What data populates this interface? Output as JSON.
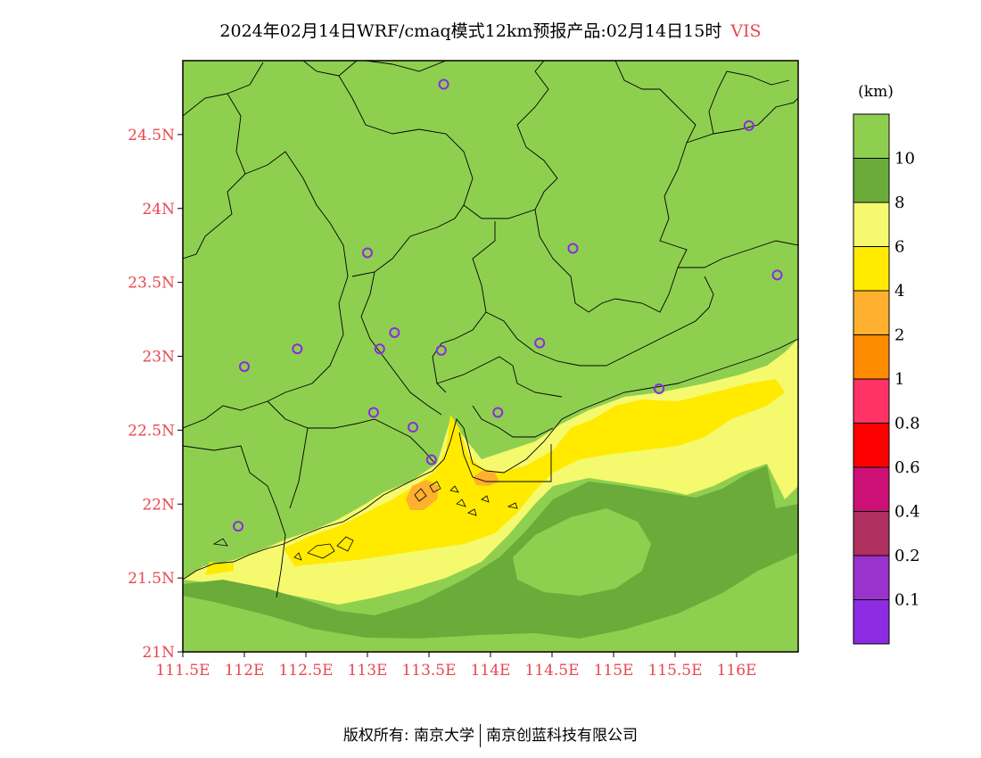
{
  "title": {
    "main": "2024年02月14日WRF/cmaq模式12km预报产品:02月14日15时",
    "variable": "VIS"
  },
  "map": {
    "lat_range": [
      21,
      25
    ],
    "lon_range": [
      111.5,
      116.5
    ],
    "lat_ticks": [
      "24.5N",
      "24N",
      "23.5N",
      "23N",
      "22.5N",
      "22N",
      "21.5N",
      "21N"
    ],
    "lon_ticks": [
      "111.5E",
      "112E",
      "112.5E",
      "113E",
      "113.5E",
      "114E",
      "114.5E",
      "115E",
      "115.5E",
      "116E"
    ],
    "axis_label_color": "#e8474f",
    "station_color": "#8a2be2",
    "stations": [
      {
        "lon": 113.62,
        "lat": 24.84
      },
      {
        "lon": 116.1,
        "lat": 24.56
      },
      {
        "lon": 113.0,
        "lat": 23.7
      },
      {
        "lon": 114.67,
        "lat": 23.73
      },
      {
        "lon": 116.33,
        "lat": 23.55
      },
      {
        "lon": 113.22,
        "lat": 23.16
      },
      {
        "lon": 112.43,
        "lat": 23.05
      },
      {
        "lon": 113.1,
        "lat": 23.05
      },
      {
        "lon": 113.6,
        "lat": 23.04
      },
      {
        "lon": 114.4,
        "lat": 23.09
      },
      {
        "lon": 112.0,
        "lat": 22.93
      },
      {
        "lon": 115.37,
        "lat": 22.78
      },
      {
        "lon": 113.05,
        "lat": 22.62
      },
      {
        "lon": 113.37,
        "lat": 22.52
      },
      {
        "lon": 114.06,
        "lat": 22.62
      },
      {
        "lon": 113.52,
        "lat": 22.3
      },
      {
        "lon": 111.95,
        "lat": 21.85
      }
    ]
  },
  "legend": {
    "unit": "(km)",
    "colors": [
      "#8d2be2",
      "#9a32cd",
      "#b03060",
      "#cd1076",
      "#ff0000",
      "#ff3366",
      "#ff8c00",
      "#ffb02e",
      "#ffea00",
      "#f5f96e",
      "#6aab3a",
      "#8fcf50"
    ],
    "labels": [
      "0.1",
      "0.2",
      "0.4",
      "0.6",
      "0.8",
      "1",
      "2",
      "4",
      "6",
      "8",
      "10"
    ]
  },
  "footer": {
    "left": "版权所有: 南京大学",
    "right": "南京创蓝科技有限公司"
  }
}
